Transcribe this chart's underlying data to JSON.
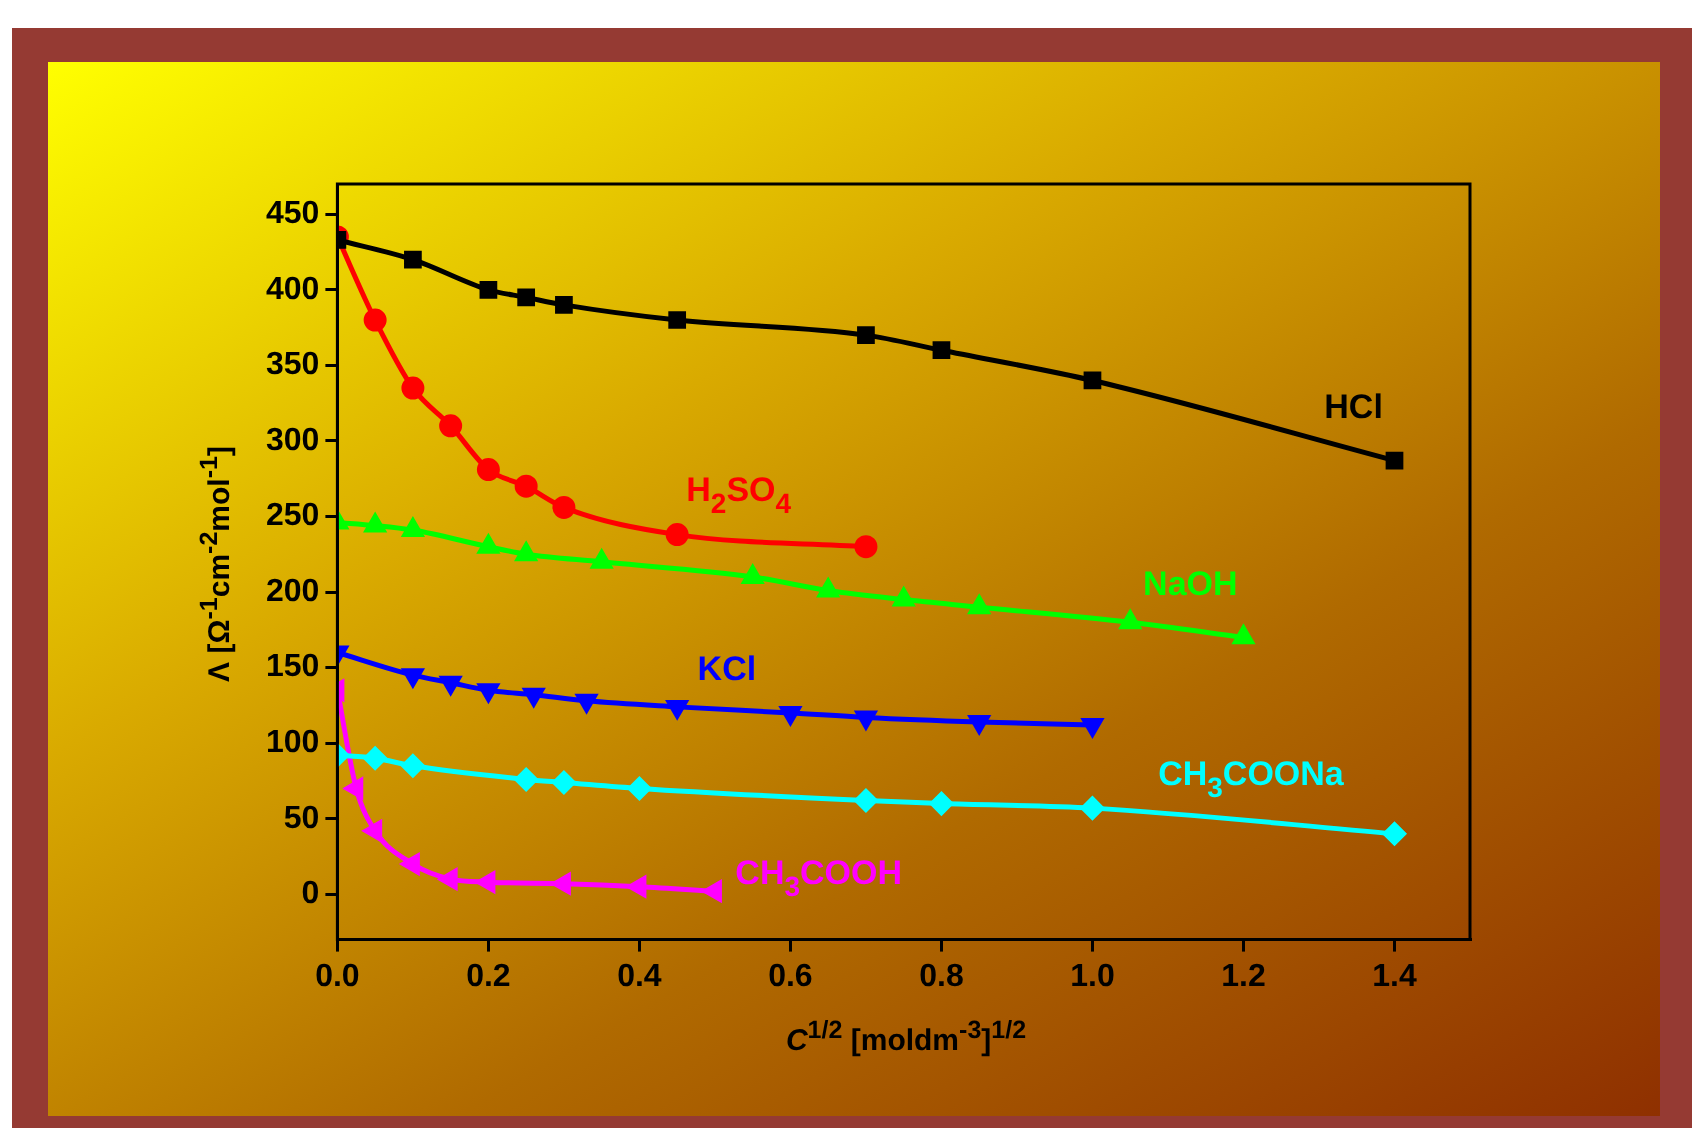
{
  "chart_data": {
    "type": "line",
    "xlabel": "C$^{1/2}$ [moldm$^{-3}$]$^{1/2}$",
    "ylabel": "Λ [Ω$^{-1}$cm$^{-2}$mol$^{-1}$]",
    "xlim": [
      0,
      1.5
    ],
    "xticks": [
      {
        "value": 0,
        "label": "0.0"
      },
      {
        "value": 0.2,
        "label": "0.2"
      },
      {
        "value": 0.4,
        "label": "0.4"
      },
      {
        "value": 0.6,
        "label": "0.6"
      },
      {
        "value": 0.8,
        "label": "0.8"
      },
      {
        "value": 1,
        "label": "1.0"
      },
      {
        "value": 1.2,
        "label": "1.2"
      },
      {
        "value": 1.4,
        "label": "1.4"
      }
    ],
    "ylim": [
      -30,
      470
    ],
    "yticks": [
      0,
      50,
      100,
      150,
      200,
      250,
      300,
      350,
      400,
      450
    ],
    "grid": false,
    "legend": false,
    "series": [
      {
        "name": "HCl",
        "color": "#000000",
        "marker": "square",
        "x": [
          0,
          0.1,
          0.2,
          0.25,
          0.3,
          0.45,
          0.7,
          0.8,
          1.0,
          1.4
        ],
        "values": [
          433,
          420,
          400,
          395,
          390,
          380,
          370,
          360,
          340,
          287
        ]
      },
      {
        "name": "H$_{2}$SO$_{4}$",
        "color": "#ff0000",
        "marker": "circle",
        "x": [
          0,
          0.05,
          0.1,
          0.15,
          0.2,
          0.25,
          0.3,
          0.45,
          0.7
        ],
        "values": [
          435,
          380,
          335,
          310,
          281,
          270,
          256,
          238,
          230
        ]
      },
      {
        "name": "NaOH",
        "color": "#00ff00",
        "marker": "triangle",
        "x": [
          0,
          0.05,
          0.1,
          0.2,
          0.25,
          0.35,
          0.55,
          0.65,
          0.75,
          0.85,
          1.05,
          1.2
        ],
        "values": [
          246,
          244,
          241,
          230,
          225,
          220,
          210,
          201,
          195,
          190,
          180,
          170
        ]
      },
      {
        "name": "KCl",
        "color": "#0000ff",
        "marker": "triangle",
        "x": [
          0,
          0.1,
          0.15,
          0.2,
          0.26,
          0.33,
          0.45,
          0.6,
          0.7,
          0.85,
          1.0
        ],
        "values": [
          160,
          145,
          140,
          135,
          132,
          128,
          124,
          120,
          117,
          114,
          112
        ]
      },
      {
        "name": "CH$_{3}$COONa",
        "color": "#00ffff",
        "marker": "diamond",
        "x": [
          0,
          0.05,
          0.1,
          0.25,
          0.3,
          0.4,
          0.7,
          0.8,
          1.0,
          1.4
        ],
        "values": [
          92,
          90,
          85,
          76,
          74,
          70,
          62,
          60,
          57,
          40
        ]
      },
      {
        "name": "CH$_{3}$COOH",
        "color": "#ff00ff",
        "marker": "triangle",
        "x": [
          0,
          0.025,
          0.05,
          0.1,
          0.15,
          0.2,
          0.3,
          0.4,
          0.5
        ],
        "values": [
          135,
          70,
          42,
          20,
          10,
          8,
          7,
          5,
          2
        ]
      }
    ]
  }
}
